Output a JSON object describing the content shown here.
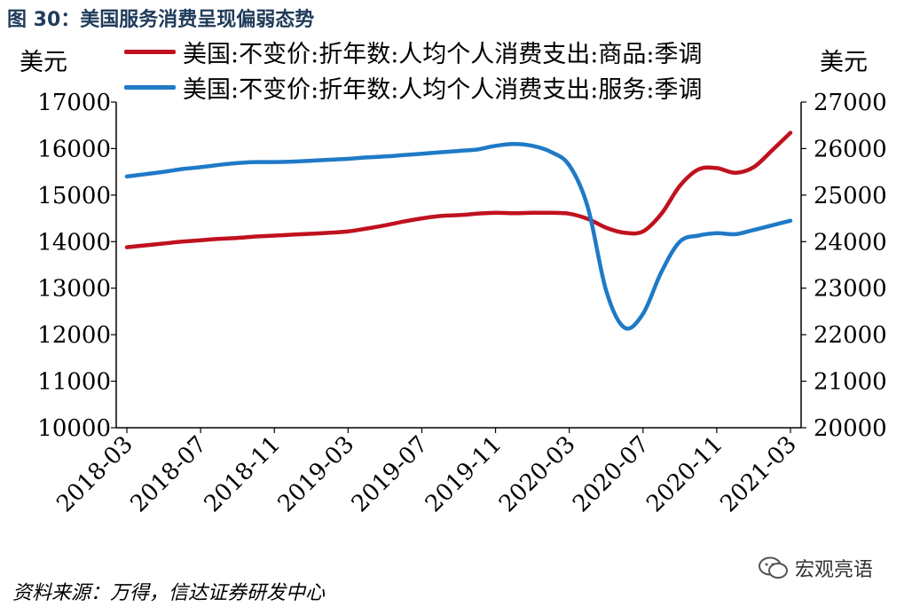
{
  "figure": {
    "title": "图 30：美国服务消费呈现偏弱态势",
    "source": "资料来源：万得，信达证券研发中心",
    "watermark": "宏观亮语",
    "watermark_icon": "wechat-icon"
  },
  "colors": {
    "title": "#1f3b5a",
    "goods": "#c0111f",
    "services": "#1f7ac6"
  },
  "chart_data": {
    "type": "line",
    "units": {
      "left": "美元",
      "right": "美元"
    },
    "x": [
      "2018-03",
      "2018-04",
      "2018-05",
      "2018-06",
      "2018-07",
      "2018-08",
      "2018-09",
      "2018-10",
      "2018-11",
      "2018-12",
      "2019-01",
      "2019-02",
      "2019-03",
      "2019-04",
      "2019-05",
      "2019-06",
      "2019-07",
      "2019-08",
      "2019-09",
      "2019-10",
      "2019-11",
      "2019-12",
      "2020-01",
      "2020-02",
      "2020-03",
      "2020-04",
      "2020-05",
      "2020-06",
      "2020-07",
      "2020-08",
      "2020-09",
      "2020-10",
      "2020-11",
      "2020-12",
      "2021-01",
      "2021-02",
      "2021-03"
    ],
    "xticks": [
      "2018-03",
      "2018-07",
      "2018-11",
      "2019-03",
      "2019-07",
      "2019-11",
      "2020-03",
      "2020-07",
      "2020-11",
      "2021-03"
    ],
    "series": [
      {
        "name": "美国:不变价:折年数:人均个人消费支出:商品:季调",
        "axis": "left",
        "values": [
          13880,
          13920,
          13960,
          14000,
          14030,
          14060,
          14080,
          14110,
          14130,
          14150,
          14170,
          14190,
          14220,
          14280,
          14350,
          14430,
          14500,
          14550,
          14570,
          14600,
          14620,
          14610,
          14620,
          14620,
          14600,
          14490,
          14300,
          14190,
          14220,
          14600,
          15200,
          15550,
          15580,
          15480,
          15600,
          15960,
          16340
        ]
      },
      {
        "name": "美国:不变价:折年数:人均个人消费支出:服务:季调",
        "axis": "right",
        "values": [
          25400,
          25450,
          25500,
          25560,
          25600,
          25650,
          25690,
          25710,
          25710,
          25720,
          25740,
          25760,
          25780,
          25810,
          25830,
          25860,
          25890,
          25920,
          25950,
          25980,
          26060,
          26100,
          26060,
          25930,
          25640,
          24750,
          22950,
          22150,
          22450,
          23350,
          24000,
          24130,
          24180,
          24160,
          24250,
          24350,
          24450
        ]
      }
    ],
    "yaxis_left": {
      "range": [
        10000,
        17000
      ],
      "ticks": [
        "10000",
        "11000",
        "12000",
        "13000",
        "14000",
        "15000",
        "16000",
        "17000"
      ]
    },
    "yaxis_right": {
      "range": [
        20000,
        27000
      ],
      "ticks": [
        "20000",
        "21000",
        "22000",
        "23000",
        "24000",
        "25000",
        "26000",
        "27000"
      ]
    },
    "grid": false,
    "legend_position": "top"
  }
}
